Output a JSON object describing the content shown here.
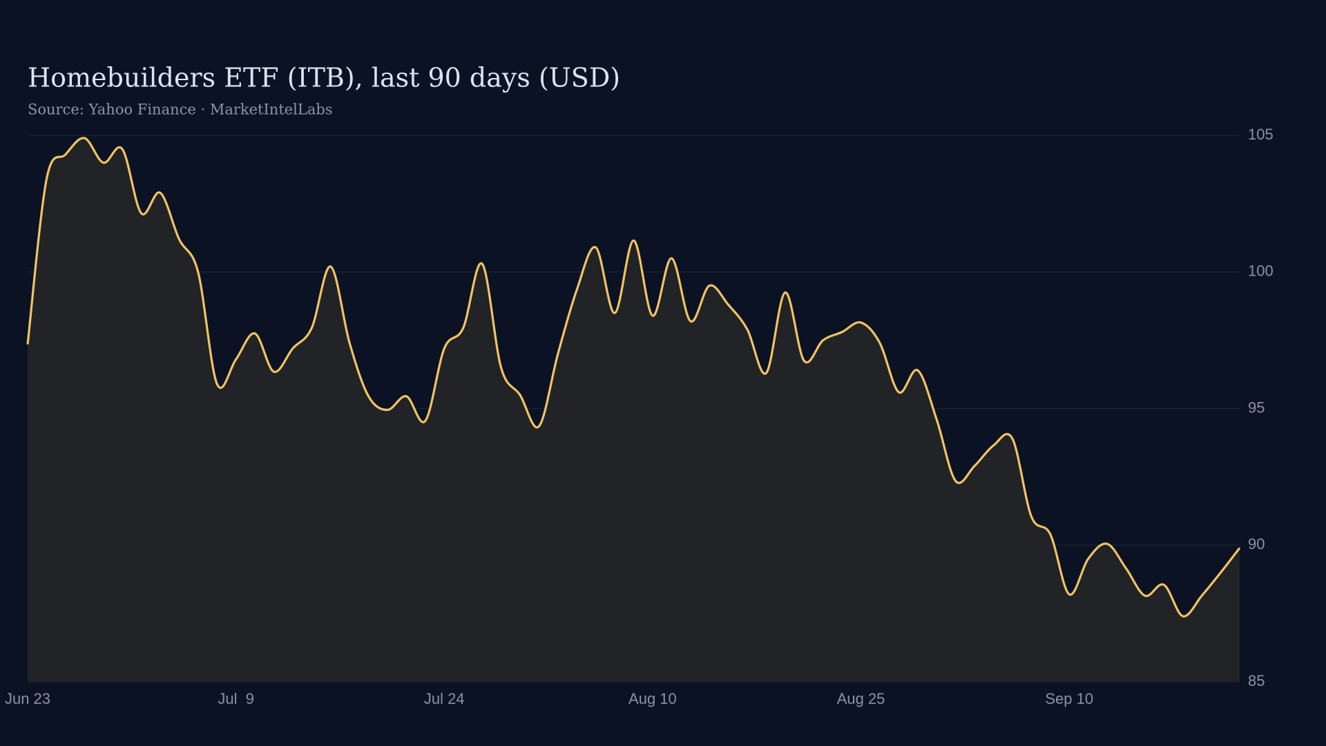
{
  "chart_data": {
    "type": "line",
    "title": "Homebuilders ETF (ITB), last 90 days (USD)",
    "subtitle": "Source: Yahoo Finance · MarketIntelLabs",
    "categories": [
      "Jun 23",
      null,
      null,
      null,
      null,
      null,
      null,
      null,
      null,
      null,
      null,
      "Jul  9",
      null,
      null,
      null,
      null,
      null,
      null,
      null,
      null,
      null,
      null,
      "Jul 24",
      null,
      null,
      null,
      null,
      null,
      null,
      null,
      null,
      null,
      null,
      "Aug 10",
      null,
      null,
      null,
      null,
      null,
      null,
      null,
      null,
      null,
      null,
      "Aug 25",
      null,
      null,
      null,
      null,
      null,
      null,
      null,
      null,
      null,
      null,
      "Sep 10",
      null,
      null,
      null,
      null,
      null,
      null,
      null,
      null,
      null
    ],
    "series": [
      {
        "name": "ITB",
        "color": "#f2c462",
        "values": [
          97.35,
          103.4,
          104.3,
          104.9,
          104.0,
          104.5,
          102.15,
          102.9,
          101.2,
          100.0,
          95.9,
          96.8,
          97.75,
          96.35,
          97.2,
          97.95,
          100.2,
          97.4,
          95.45,
          94.95,
          95.45,
          94.55,
          97.2,
          97.95,
          100.3,
          96.5,
          95.5,
          94.35,
          97.0,
          99.35,
          100.9,
          98.5,
          101.15,
          98.4,
          100.5,
          98.2,
          99.5,
          98.8,
          97.9,
          96.3,
          99.25,
          96.75,
          97.5,
          97.8,
          98.15,
          97.4,
          95.6,
          96.4,
          94.6,
          92.35,
          92.9,
          93.65,
          93.9,
          91.05,
          90.4,
          88.2,
          89.5,
          90.05,
          89.15,
          88.15,
          88.55,
          87.4,
          88.15,
          89.0,
          89.9
        ]
      }
    ],
    "ylim": [
      85,
      105
    ],
    "yticks": [
      85,
      90,
      95,
      100,
      105
    ],
    "grid": true
  }
}
